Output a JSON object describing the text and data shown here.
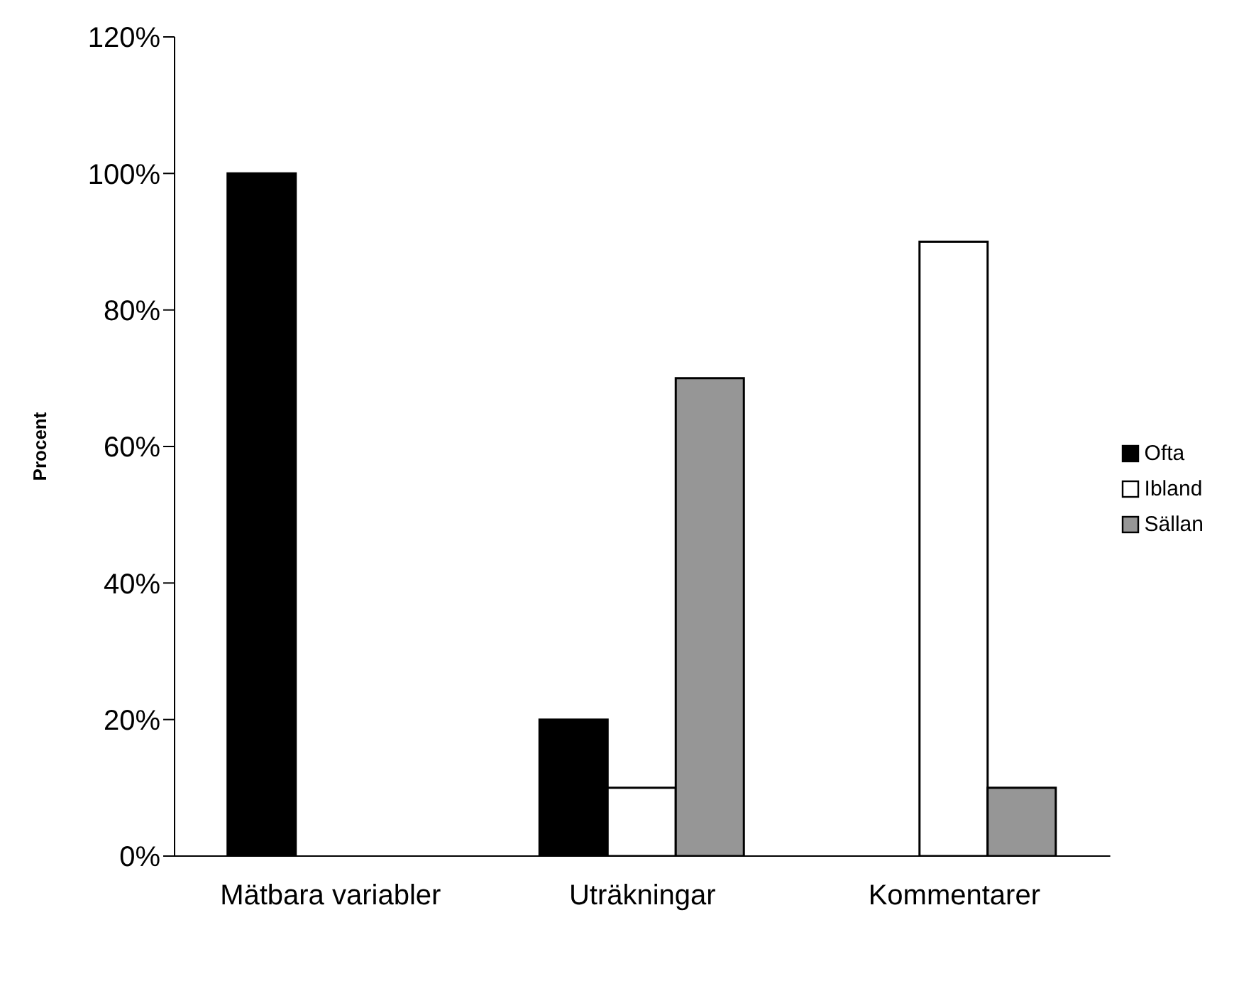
{
  "chart_data": {
    "type": "bar",
    "ylabel": "Procent",
    "categories": [
      "Mätbara variabler",
      "Uträkningar",
      "Kommentarer"
    ],
    "series": [
      {
        "name": "Ofta",
        "color": "#000000",
        "values": [
          100,
          20,
          0
        ]
      },
      {
        "name": "Ibland",
        "color": "#ffffff",
        "values": [
          0,
          10,
          90
        ]
      },
      {
        "name": "Sällan",
        "color": "#969696",
        "values": [
          0,
          70,
          10
        ]
      }
    ],
    "ylim": [
      0,
      120
    ],
    "yticks": [
      {
        "value": 0,
        "label": "0%"
      },
      {
        "value": 20,
        "label": "20%"
      },
      {
        "value": 40,
        "label": "40%"
      },
      {
        "value": 60,
        "label": "60%"
      },
      {
        "value": 80,
        "label": "80%"
      },
      {
        "value": 100,
        "label": "100%"
      },
      {
        "value": 120,
        "label": "120%"
      }
    ],
    "grid": false,
    "legend": "right"
  }
}
